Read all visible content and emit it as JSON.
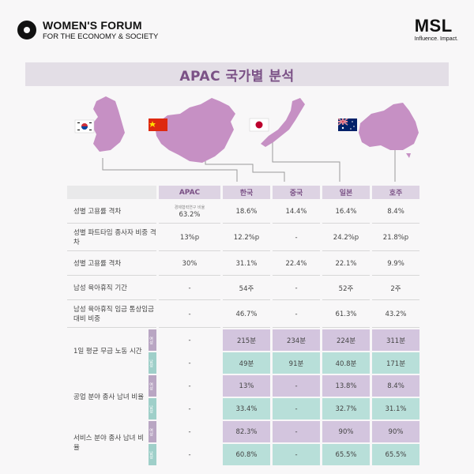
{
  "header": {
    "wf_title": "WOMEN'S FORUM",
    "wf_sub": "FOR THE ECONOMY & SOCIETY",
    "msl_title": "MSL",
    "msl_sub": "Influence. Impact."
  },
  "banner": {
    "title": "APAC 국가별 분석"
  },
  "table": {
    "columns": [
      "APAC",
      "한국",
      "중국",
      "일본",
      "호주"
    ],
    "apac_note": "경제협력연구 비율",
    "gender_labels": {
      "female": "여성",
      "male": "남성"
    },
    "rows": [
      {
        "label": "성별 고용률 격차",
        "values": [
          "63.2%",
          "18.6%",
          "14.4%",
          "16.4%",
          "8.4%"
        ]
      },
      {
        "label": "성별 파트타임 종사자 비중 격차",
        "values": [
          "13%p",
          "12.2%p",
          "-",
          "24.2%p",
          "21.8%p"
        ]
      },
      {
        "label": "성별 고용률 격차",
        "values": [
          "30%",
          "31.1%",
          "22.4%",
          "22.1%",
          "9.9%"
        ]
      },
      {
        "label": "남성 육아휴직 기간",
        "values": [
          "-",
          "54주",
          "-",
          "52주",
          "2주"
        ]
      },
      {
        "label": "남성 육아휴직 임금 통상임금 대비 비중",
        "values": [
          "-",
          "46.7%",
          "-",
          "61.3%",
          "43.2%"
        ]
      }
    ],
    "gender_rows": [
      {
        "label": "1일 평균 무급 노동 시간",
        "female": [
          "-",
          "215분",
          "234분",
          "224분",
          "311분"
        ],
        "male": [
          "-",
          "49분",
          "91분",
          "40.8분",
          "171분"
        ]
      },
      {
        "label": "공업 분야 종사 남녀 비율",
        "female": [
          "-",
          "13%",
          "-",
          "13.8%",
          "8.4%"
        ],
        "male": [
          "-",
          "33.4%",
          "-",
          "32.7%",
          "31.1%"
        ]
      },
      {
        "label": "서비스 분야 종사 남녀 비율",
        "female": [
          "-",
          "82.3%",
          "-",
          "90%",
          "90%"
        ],
        "male": [
          "-",
          "60.8%",
          "-",
          "65.5%",
          "65.5%"
        ]
      }
    ]
  },
  "colors": {
    "accent": "#7b5186",
    "female": "#d3c5de",
    "male": "#b8dfd9",
    "map": "#c690c4"
  }
}
